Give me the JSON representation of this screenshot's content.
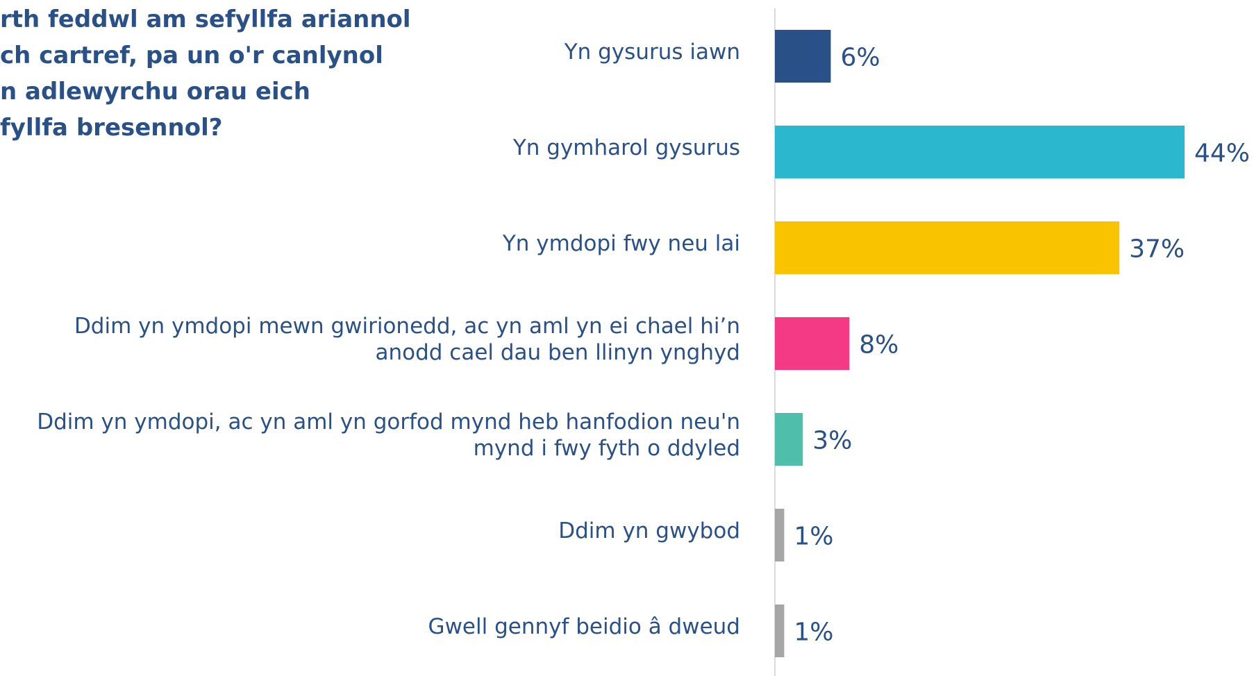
{
  "chart_data": {
    "type": "bar",
    "orientation": "horizontal",
    "title": [
      "rth feddwl am sefyllfa ariannol",
      "ch cartref, pa un o'r canlynol",
      "n adlewyrchu orau eich",
      "fyllfa bresennol?"
    ],
    "categories": [
      "Yn gysurus iawn",
      "Yn gymharol gysurus",
      "Yn ymdopi fwy neu lai",
      "Ddim yn ymdopi mewn gwirionedd, ac yn aml yn ei chael hi’n anodd cael dau ben llinyn ynghyd",
      "Ddim yn ymdopi, ac yn aml yn gorfod mynd heb hanfodion neu'n mynd i fwy fyth o ddyled",
      "Ddim yn gwybod",
      "Gwell gennyf beidio â dweud"
    ],
    "values": [
      6,
      44,
      37,
      8,
      3,
      1,
      1
    ],
    "value_labels": [
      "6%",
      "44%",
      "37%",
      "8%",
      "3%",
      "1%",
      "1%"
    ],
    "colors": [
      "#2a5088",
      "#2bb8cf",
      "#f9c300",
      "#f43a84",
      "#4fbfab",
      "#a6a6a6",
      "#a6a6a6"
    ],
    "xlim": [
      0,
      44
    ]
  }
}
